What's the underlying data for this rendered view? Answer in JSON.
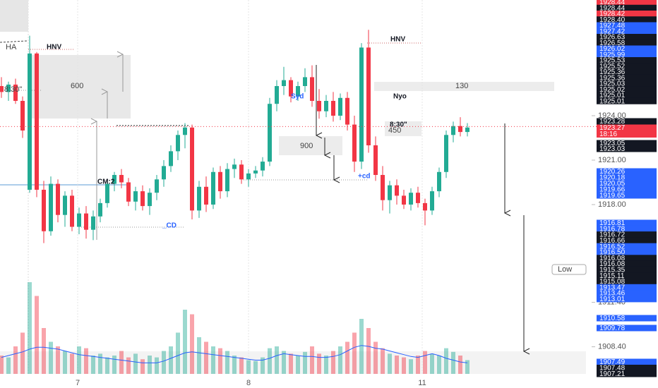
{
  "chart_data": {
    "type": "candlestick",
    "up_color": "#22ab94",
    "down_color": "#f23645",
    "volume_ma_color": "#2962ff",
    "ylim": [
      1906.57,
      1931.81
    ],
    "yticks": [
      {
        "value": 1924,
        "label": "1924.00"
      },
      {
        "value": 1921,
        "label": "1921.00"
      },
      {
        "value": 1918,
        "label": "1918.00"
      },
      {
        "value": 1911.4,
        "label": "1911.40"
      },
      {
        "value": 1908.4,
        "label": "1908.40"
      }
    ],
    "xlim": [
      -0.2,
      82.8
    ],
    "xticks": [
      {
        "value": 10.8,
        "label": "7"
      },
      {
        "value": 35,
        "label": "8"
      },
      {
        "value": 59.6,
        "label": "11"
      }
    ],
    "open": [
      1926.0,
      1925.6,
      1926.1,
      1925.0,
      1919.0,
      1928.2,
      1919.0,
      1916.2,
      1919.4,
      1917.3,
      1918.6,
      1916.5,
      1917.4,
      1916.3,
      1917.2,
      1918.1,
      1919.4,
      1920.0,
      1919.5,
      1918.2,
      1918.9,
      1917.9,
      1918.8,
      1919.7,
      1920.6,
      1921.6,
      1922.7,
      1923.2,
      1917.6,
      1919.2,
      1918.0,
      1920.2,
      1918.9,
      1920.4,
      1920.7,
      1919.7,
      1920.1,
      1920.3,
      1920.9,
      1924.8,
      1926.0,
      1926.4,
      1925.3,
      1926.0,
      1926.6,
      1925.0,
      1924.3,
      1925.0,
      1924.0,
      1925.2,
      1923.4,
      1920.9,
      1928.6,
      1922.0,
      1920.0,
      1918.3,
      1919.3,
      1918.6,
      1918.0,
      1918.8,
      1918.1,
      1917.6,
      1918.9,
      1920.2,
      1922.7,
      1923.3,
      1922.9
    ],
    "high": [
      1926.6,
      1926.3,
      1926.5,
      1925.3,
      1929.4,
      1928.3,
      1919.6,
      1919.9,
      1919.7,
      1918.9,
      1919.0,
      1917.8,
      1917.9,
      1917.6,
      1918.4,
      1919.6,
      1920.2,
      1920.4,
      1919.8,
      1919.2,
      1919.3,
      1919.1,
      1920.0,
      1921.0,
      1922.0,
      1923.0,
      1923.5,
      1923.4,
      1919.6,
      1919.9,
      1920.5,
      1920.6,
      1920.8,
      1921.1,
      1921.0,
      1920.4,
      1920.6,
      1921.2,
      1925.2,
      1926.4,
      1927.3,
      1926.6,
      1926.3,
      1927.2,
      1927.4,
      1925.8,
      1925.4,
      1925.6,
      1925.5,
      1925.6,
      1924.0,
      1928.9,
      1929.8,
      1922.6,
      1920.6,
      1919.6,
      1919.7,
      1919.0,
      1919.1,
      1919.2,
      1918.4,
      1919.2,
      1920.5,
      1923.0,
      1923.6,
      1923.9,
      1923.5
    ],
    "low": [
      1925.2,
      1925.0,
      1924.8,
      1922.5,
      1918.8,
      1918.5,
      1915.4,
      1915.9,
      1916.8,
      1916.5,
      1916.2,
      1916.0,
      1915.7,
      1915.6,
      1916.8,
      1917.8,
      1918.9,
      1919.1,
      1917.9,
      1917.6,
      1917.6,
      1917.3,
      1918.3,
      1919.2,
      1920.2,
      1921.0,
      1921.8,
      1917.0,
      1917.1,
      1917.5,
      1917.7,
      1918.4,
      1918.5,
      1919.8,
      1919.4,
      1919.2,
      1919.8,
      1919.9,
      1920.6,
      1924.3,
      1925.4,
      1924.9,
      1925.0,
      1925.6,
      1924.6,
      1923.8,
      1923.9,
      1923.6,
      1923.7,
      1923.0,
      1920.2,
      1920.4,
      1921.5,
      1919.6,
      1917.6,
      1917.4,
      1918.0,
      1917.7,
      1917.6,
      1917.8,
      1916.6,
      1917.3,
      1918.5,
      1919.8,
      1922.2,
      1922.6,
      1922.6
    ],
    "close": [
      1925.6,
      1926.1,
      1925.0,
      1923.0,
      1928.2,
      1919.0,
      1916.2,
      1919.4,
      1917.3,
      1918.6,
      1916.5,
      1917.4,
      1916.3,
      1917.2,
      1918.1,
      1919.4,
      1920.0,
      1919.5,
      1918.2,
      1918.9,
      1917.9,
      1918.8,
      1919.7,
      1920.6,
      1921.6,
      1922.7,
      1923.2,
      1917.6,
      1919.2,
      1918.0,
      1920.2,
      1918.9,
      1920.4,
      1920.7,
      1919.7,
      1920.1,
      1920.3,
      1920.9,
      1924.8,
      1926.0,
      1926.4,
      1925.3,
      1926.0,
      1926.6,
      1925.0,
      1924.3,
      1925.0,
      1924.0,
      1925.2,
      1923.4,
      1920.9,
      1928.6,
      1922.0,
      1920.0,
      1918.3,
      1919.3,
      1918.6,
      1918.0,
      1918.8,
      1918.1,
      1917.6,
      1918.9,
      1920.2,
      1922.7,
      1923.3,
      1922.9,
      1923.2
    ],
    "volume": [
      20,
      18,
      30,
      45,
      100,
      85,
      50,
      35,
      30,
      25,
      22,
      30,
      28,
      20,
      22,
      18,
      20,
      25,
      18,
      22,
      16,
      20,
      18,
      25,
      30,
      45,
      70,
      65,
      40,
      35,
      30,
      28,
      25,
      20,
      18,
      15,
      14,
      18,
      28,
      30,
      25,
      22,
      20,
      24,
      30,
      22,
      20,
      25,
      30,
      35,
      45,
      60,
      50,
      35,
      28,
      22,
      20,
      18,
      16,
      20,
      25,
      22,
      20,
      28,
      24,
      20,
      15
    ],
    "volume_ma": [
      18,
      20,
      22,
      24,
      27,
      29,
      29,
      28,
      27,
      25,
      23,
      21,
      20,
      19,
      18,
      17,
      16,
      15,
      14,
      13,
      12,
      12,
      12,
      14,
      17,
      20,
      23,
      24,
      23,
      22,
      21,
      20,
      19,
      18,
      17,
      16,
      15,
      15,
      17,
      20,
      22,
      21,
      20,
      19,
      19,
      18,
      18,
      19,
      21,
      25,
      29,
      31,
      30,
      28,
      27,
      25,
      23,
      21,
      19,
      18,
      20,
      22,
      20,
      17,
      15,
      13,
      12
    ],
    "price_tags": [
      {
        "value": 1928.44,
        "color": "#f23645"
      },
      {
        "value": 1928.44,
        "color": "#131722"
      },
      {
        "value": 1928.42,
        "color": "#f23645"
      },
      {
        "value": 1928.4,
        "label": "1928.40",
        "color": "#131722"
      },
      {
        "value": 1927.48,
        "color": "#2962ff"
      },
      {
        "value": 1927.42,
        "color": "#2962ff"
      },
      {
        "value": 1926.63,
        "color": "#131722"
      },
      {
        "value": 1926.58,
        "color": "#131722"
      },
      {
        "value": 1926.02,
        "color": "#2962ff"
      },
      {
        "value": 1925.99,
        "color": "#2962ff"
      },
      {
        "value": 1925.53,
        "color": "#131722"
      },
      {
        "value": 1925.52,
        "color": "#131722"
      },
      {
        "value": 1925.36,
        "color": "#131722"
      },
      {
        "value": 1925.36,
        "color": "#131722"
      },
      {
        "value": 1925.03,
        "color": "#131722"
      },
      {
        "value": 1925.02,
        "color": "#131722"
      },
      {
        "value": 1925.01,
        "color": "#131722"
      },
      {
        "value": 1925.01,
        "color": "#131722"
      },
      {
        "value": 1923.28,
        "color": "#131722"
      },
      {
        "value": 1923.27,
        "color": "#f23645"
      },
      {
        "value": 1923.05,
        "color": "#131722"
      },
      {
        "value": 1923.03,
        "color": "#131722"
      },
      {
        "value": 1920.26,
        "color": "#2962ff"
      },
      {
        "value": 1920.18,
        "color": "#2962ff"
      },
      {
        "value": 1920.05,
        "color": "#2962ff"
      },
      {
        "value": 1919.66,
        "color": "#2962ff"
      },
      {
        "value": 1919.65,
        "color": "#2962ff"
      },
      {
        "value": 1916.81,
        "color": "#2962ff"
      },
      {
        "value": 1916.78,
        "color": "#2962ff"
      },
      {
        "value": 1916.72,
        "color": "#131722"
      },
      {
        "value": 1916.66,
        "color": "#131722"
      },
      {
        "value": 1916.52,
        "color": "#2962ff"
      },
      {
        "value": 1916.5,
        "label": "1916.50",
        "color": "#2962ff"
      },
      {
        "value": 1916.08,
        "color": "#131722"
      },
      {
        "value": 1916.08,
        "color": "#131722"
      },
      {
        "value": 1915.35,
        "color": "#131722"
      },
      {
        "value": 1915.11,
        "color": "#131722"
      },
      {
        "value": 1915.08,
        "color": "#131722"
      },
      {
        "value": 1913.47,
        "color": "#2962ff"
      },
      {
        "value": 1913.46,
        "color": "#2962ff"
      },
      {
        "value": 1913.01,
        "color": "#2962ff"
      },
      {
        "value": 1910.58,
        "color": "#2962ff"
      },
      {
        "value": 1909.78,
        "color": "#2962ff"
      },
      {
        "value": 1907.49,
        "color": "#2962ff"
      },
      {
        "value": 1907.48,
        "color": "#131722"
      },
      {
        "value": 1907.21,
        "color": "#131722"
      }
    ],
    "countdown": "18:16",
    "annotations": [
      "HA",
      "HNV",
      "HNV",
      "600",
      "8:30\"",
      "Syd",
      "Nyo",
      "130",
      "8:30\"",
      "450",
      "900",
      "CM:2",
      "+cd",
      "_CD",
      "Low"
    ]
  }
}
